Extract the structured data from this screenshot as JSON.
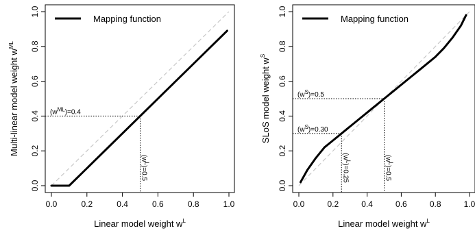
{
  "chart_data": [
    {
      "type": "line",
      "legend": {
        "label": "Mapping function",
        "position": "top-left"
      },
      "xlabel": {
        "text": "Linear model weight w",
        "sup": "L"
      },
      "ylabel": {
        "text": "Multi-linear model weight w",
        "sup": "ML"
      },
      "xlim": [
        0,
        1
      ],
      "ylim": [
        0,
        1
      ],
      "xticks": [
        "0.0",
        "0.2",
        "0.4",
        "0.6",
        "0.8",
        "1.0"
      ],
      "yticks": [
        "0.0",
        "0.2",
        "0.4",
        "0.6",
        "0.8",
        "1.0"
      ],
      "reference_line": {
        "style": "dashed",
        "color": "#c8c8c8",
        "points": [
          [
            0,
            0
          ],
          [
            1,
            1
          ]
        ]
      },
      "series": [
        {
          "color": "#000000",
          "x": [
            0.0,
            0.1,
            0.99
          ],
          "y": [
            0.0,
            0.0,
            0.89
          ]
        }
      ],
      "annotations": [
        {
          "x": 0.5,
          "y": 0.4,
          "h_pre": "(w",
          "h_sup": "ML",
          "h_post": ")=0.4",
          "v_pre": "(w",
          "v_sup": "L",
          "v_post": ")=0.5"
        }
      ]
    },
    {
      "type": "line",
      "legend": {
        "label": "Mapping function",
        "position": "top-left"
      },
      "xlabel": {
        "text": "Linear model weight w",
        "sup": "L"
      },
      "ylabel": {
        "text": "SLoS model weight w",
        "sup": "S"
      },
      "xlim": [
        0,
        1
      ],
      "ylim": [
        0,
        1
      ],
      "xticks": [
        "0.0",
        "0.2",
        "0.4",
        "0.6",
        "0.8",
        "1.0"
      ],
      "yticks": [
        "0.0",
        "0.2",
        "0.4",
        "0.6",
        "0.8",
        "1.0"
      ],
      "reference_line": {
        "style": "dashed",
        "color": "#c8c8c8",
        "points": [
          [
            0,
            0
          ],
          [
            1,
            1
          ]
        ]
      },
      "series": [
        {
          "color": "#000000",
          "x": [
            0.01,
            0.05,
            0.1,
            0.15,
            0.2,
            0.25,
            0.3,
            0.35,
            0.4,
            0.45,
            0.5,
            0.55,
            0.6,
            0.65,
            0.7,
            0.75,
            0.8,
            0.85,
            0.9,
            0.95,
            0.98
          ],
          "y": [
            0.02,
            0.09,
            0.16,
            0.22,
            0.26,
            0.3,
            0.34,
            0.38,
            0.42,
            0.46,
            0.5,
            0.54,
            0.58,
            0.62,
            0.66,
            0.7,
            0.74,
            0.79,
            0.85,
            0.92,
            0.98
          ]
        }
      ],
      "annotations": [
        {
          "x": 0.5,
          "y": 0.5,
          "h_pre": "(w",
          "h_sup": "S",
          "h_post": ")=0.5",
          "v_pre": "(w",
          "v_sup": "L",
          "v_post": ")=0.5"
        },
        {
          "x": 0.25,
          "y": 0.3,
          "h_pre": "(w",
          "h_sup": "S",
          "h_post": ")=0.30",
          "v_pre": "(w",
          "v_sup": "L",
          "v_post": ")=0.25"
        }
      ]
    }
  ]
}
